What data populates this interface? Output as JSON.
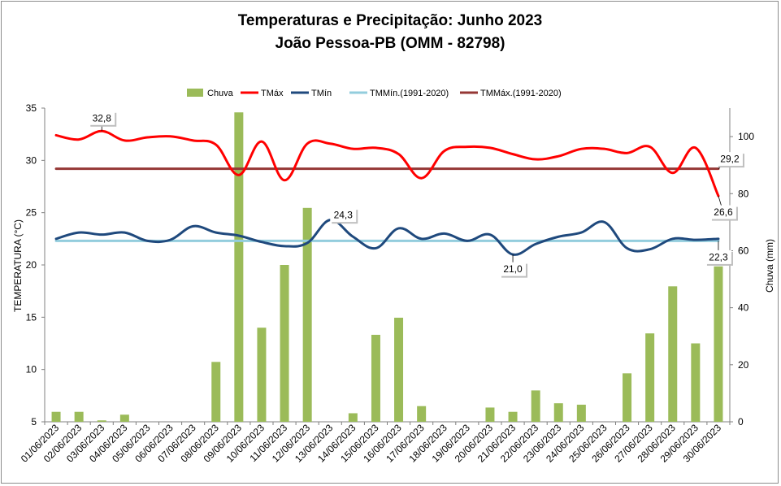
{
  "chart_data": {
    "type": "bar",
    "title": "Temperaturas e Precipitação: Junho 2023",
    "subtitle": "João Pessoa-PB (OMM - 82798)",
    "ylabel": "TEMPERATURA (°C)",
    "y2label": "Chuva (mm)",
    "ylim": [
      5,
      35
    ],
    "y2lim": [
      0,
      110
    ],
    "yticks": [
      5,
      10,
      15,
      20,
      25,
      30,
      35
    ],
    "y2ticks": [
      0,
      20,
      40,
      60,
      80,
      100
    ],
    "categories": [
      "01/06/2023",
      "02/06/2023",
      "03/06/2023",
      "04/06/2023",
      "05/06/2023",
      "06/06/2023",
      "07/06/2023",
      "08/06/2023",
      "09/06/2023",
      "10/06/2023",
      "11/06/2023",
      "12/06/2023",
      "13/06/2023",
      "14/06/2023",
      "15/06/2023",
      "16/06/2023",
      "17/06/2023",
      "18/06/2023",
      "19/06/2023",
      "20/06/2023",
      "21/06/2023",
      "22/06/2023",
      "23/06/2023",
      "24/06/2023",
      "25/06/2023",
      "26/06/2023",
      "27/06/2023",
      "28/06/2023",
      "29/06/2023",
      "30/06/2023"
    ],
    "series": [
      {
        "name": "Chuva",
        "type": "bar",
        "axis": "right",
        "color": "#9bbb59",
        "values": [
          3.5,
          3.5,
          0.5,
          2.5,
          0,
          0,
          0,
          21,
          108.5,
          33,
          55,
          75,
          0,
          3,
          30.5,
          36.5,
          5.5,
          0,
          0,
          5,
          3.5,
          11,
          6.5,
          6,
          0,
          17,
          31,
          47.5,
          27.5,
          54.5
        ]
      },
      {
        "name": "TMáx",
        "type": "line",
        "axis": "left",
        "color": "#ff0000",
        "values": [
          32.4,
          32.0,
          32.8,
          31.9,
          32.2,
          32.3,
          31.9,
          31.5,
          28.6,
          31.8,
          28.1,
          31.6,
          31.6,
          31.1,
          31.2,
          30.6,
          28.3,
          30.9,
          31.3,
          31.2,
          30.6,
          30.1,
          30.4,
          31.1,
          31.1,
          30.7,
          31.3,
          28.8,
          31.2,
          26.6
        ]
      },
      {
        "name": "TMín",
        "type": "line",
        "axis": "left",
        "color": "#1f497d",
        "values": [
          22.5,
          23.1,
          22.9,
          23.1,
          22.3,
          22.4,
          23.7,
          23.1,
          22.8,
          22.2,
          21.8,
          22.1,
          24.3,
          22.7,
          21.6,
          23.5,
          22.5,
          23.0,
          22.3,
          22.9,
          21.0,
          22.0,
          22.7,
          23.1,
          24.1,
          21.6,
          21.5,
          22.5,
          22.4,
          22.5
        ]
      },
      {
        "name": "TMMín.(1991-2020)",
        "type": "line",
        "axis": "left",
        "color": "#93cddd",
        "values": [
          22.3,
          22.3,
          22.3,
          22.3,
          22.3,
          22.3,
          22.3,
          22.3,
          22.3,
          22.3,
          22.3,
          22.3,
          22.3,
          22.3,
          22.3,
          22.3,
          22.3,
          22.3,
          22.3,
          22.3,
          22.3,
          22.3,
          22.3,
          22.3,
          22.3,
          22.3,
          22.3,
          22.3,
          22.3,
          22.3
        ]
      },
      {
        "name": "TMMáx.(1991-2020)",
        "type": "line",
        "axis": "left",
        "color": "#953735",
        "values": [
          29.2,
          29.2,
          29.2,
          29.2,
          29.2,
          29.2,
          29.2,
          29.2,
          29.2,
          29.2,
          29.2,
          29.2,
          29.2,
          29.2,
          29.2,
          29.2,
          29.2,
          29.2,
          29.2,
          29.2,
          29.2,
          29.2,
          29.2,
          29.2,
          29.2,
          29.2,
          29.2,
          29.2,
          29.2,
          29.2
        ]
      }
    ],
    "annotations": [
      {
        "text": "32,8",
        "index": 2,
        "value": 32.8,
        "series": "TMáx"
      },
      {
        "text": "24,3",
        "index": 12,
        "value": 24.3,
        "series": "TMín"
      },
      {
        "text": "21,0",
        "index": 20,
        "value": 21.0,
        "series": "TMín"
      },
      {
        "text": "29,2",
        "index": 29,
        "value": 29.2,
        "series": "TMMáx.(1991-2020)"
      },
      {
        "text": "26,6",
        "index": 29,
        "value": 26.6,
        "series": "TMáx"
      },
      {
        "text": "22,3",
        "index": 29,
        "value": 22.3,
        "series": "TMMín.(1991-2020)"
      }
    ],
    "legend_position": "top"
  }
}
